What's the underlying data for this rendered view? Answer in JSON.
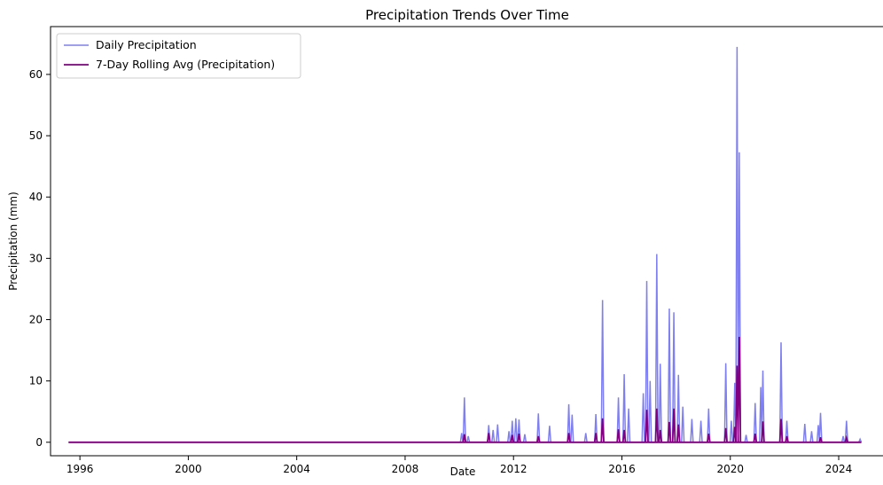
{
  "chart_data": {
    "type": "line",
    "title": "Precipitation Trends Over Time",
    "xlabel": "Date",
    "ylabel": "Precipitation (mm)",
    "xlim": [
      "1994-12-01",
      "2025-09-01"
    ],
    "ylim": [
      -2.2,
      67.8
    ],
    "x_ticks": [
      "1996",
      "2000",
      "2004",
      "2008",
      "2012",
      "2016",
      "2020",
      "2024"
    ],
    "y_ticks": [
      "0",
      "10",
      "20",
      "30",
      "40",
      "50",
      "60"
    ],
    "y_tick_values": [
      0,
      10,
      20,
      30,
      40,
      50,
      60
    ],
    "grid": false,
    "legend_position": "top-left",
    "series": [
      {
        "name": "Daily Precipitation",
        "color": "#7f7ff0",
        "baseline": {
          "start": "1995-08-01",
          "end": "2024-11-01",
          "value": 0
        },
        "spikes": [
          [
            "2010-02-01",
            1.5
          ],
          [
            "2010-03-10",
            7.3
          ],
          [
            "2010-05-01",
            1.0
          ],
          [
            "2011-02-01",
            2.8
          ],
          [
            "2011-04-01",
            2.0
          ],
          [
            "2011-06-01",
            2.9
          ],
          [
            "2011-11-01",
            1.8
          ],
          [
            "2011-12-15",
            3.5
          ],
          [
            "2012-02-01",
            3.9
          ],
          [
            "2012-03-15",
            3.7
          ],
          [
            "2012-06-01",
            1.3
          ],
          [
            "2012-12-01",
            4.7
          ],
          [
            "2013-05-01",
            2.7
          ],
          [
            "2014-01-15",
            6.2
          ],
          [
            "2014-03-01",
            4.5
          ],
          [
            "2014-09-01",
            1.5
          ],
          [
            "2015-01-15",
            4.6
          ],
          [
            "2015-04-15",
            23.2
          ],
          [
            "2015-11-15",
            7.3
          ],
          [
            "2016-02-01",
            11.1
          ],
          [
            "2016-04-01",
            5.5
          ],
          [
            "2016-10-15",
            8.0
          ],
          [
            "2016-12-01",
            26.3
          ],
          [
            "2017-01-15",
            10.0
          ],
          [
            "2017-04-15",
            30.7
          ],
          [
            "2017-06-01",
            12.8
          ],
          [
            "2017-10-01",
            21.8
          ],
          [
            "2017-12-01",
            21.2
          ],
          [
            "2018-02-01",
            11.0
          ],
          [
            "2018-04-01",
            5.8
          ],
          [
            "2018-08-01",
            3.8
          ],
          [
            "2018-12-01",
            3.5
          ],
          [
            "2019-03-15",
            5.5
          ],
          [
            "2019-11-01",
            12.9
          ],
          [
            "2020-01-15",
            3.5
          ],
          [
            "2020-03-01",
            9.7
          ],
          [
            "2020-04-01",
            64.5
          ],
          [
            "2020-05-01",
            47.3
          ],
          [
            "2020-08-01",
            1.2
          ],
          [
            "2020-12-01",
            6.4
          ],
          [
            "2021-02-15",
            9.0
          ],
          [
            "2021-03-15",
            11.7
          ],
          [
            "2021-11-15",
            16.3
          ],
          [
            "2022-02-01",
            3.5
          ],
          [
            "2022-10-01",
            3.0
          ],
          [
            "2023-01-01",
            1.8
          ],
          [
            "2023-04-01",
            2.8
          ],
          [
            "2023-05-01",
            4.8
          ],
          [
            "2024-03-01",
            1.0
          ],
          [
            "2024-04-15",
            3.5
          ],
          [
            "2024-10-15",
            0.5
          ]
        ]
      },
      {
        "name": "7-Day Rolling Avg (Precipitation)",
        "color": "#800080",
        "baseline": {
          "start": "1995-08-01",
          "end": "2024-11-01",
          "value": 0
        },
        "spikes": [
          [
            "2010-03-10",
            1.3
          ],
          [
            "2011-02-01",
            1.5
          ],
          [
            "2011-12-15",
            1.2
          ],
          [
            "2012-03-15",
            1.4
          ],
          [
            "2012-12-01",
            1.0
          ],
          [
            "2014-01-15",
            1.5
          ],
          [
            "2015-01-15",
            1.5
          ],
          [
            "2015-04-15",
            3.9
          ],
          [
            "2015-11-15",
            2.1
          ],
          [
            "2016-02-01",
            2.0
          ],
          [
            "2016-12-01",
            5.3
          ],
          [
            "2017-04-15",
            5.5
          ],
          [
            "2017-06-01",
            2.0
          ],
          [
            "2017-10-01",
            3.3
          ],
          [
            "2017-12-01",
            5.5
          ],
          [
            "2018-02-01",
            2.9
          ],
          [
            "2019-03-15",
            1.4
          ],
          [
            "2019-11-01",
            2.3
          ],
          [
            "2020-03-01",
            2.5
          ],
          [
            "2020-04-01",
            12.5
          ],
          [
            "2020-05-01",
            17.2
          ],
          [
            "2020-12-01",
            1.4
          ],
          [
            "2021-03-15",
            3.4
          ],
          [
            "2021-11-15",
            3.8
          ],
          [
            "2022-02-01",
            1.0
          ],
          [
            "2023-05-01",
            0.8
          ],
          [
            "2024-04-15",
            0.7
          ]
        ]
      }
    ]
  }
}
